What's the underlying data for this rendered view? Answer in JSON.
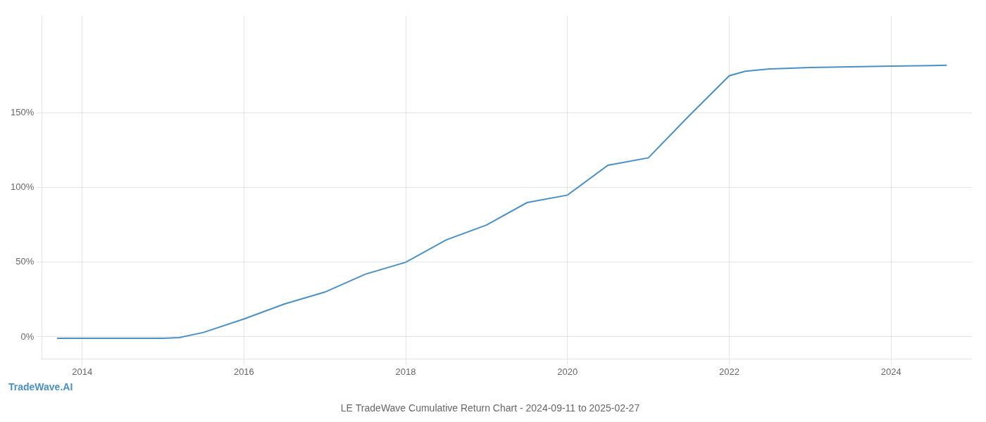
{
  "chart_data": {
    "type": "line",
    "title": "LE TradeWave Cumulative Return Chart - 2024-09-11 to 2025-02-27",
    "annotations": [
      "TradeWave.AI"
    ],
    "x": [
      2013.69,
      2014.0,
      2014.5,
      2015.0,
      2015.2,
      2015.5,
      2016.0,
      2016.5,
      2017.0,
      2017.5,
      2018.0,
      2018.5,
      2019.0,
      2019.5,
      2020.0,
      2020.5,
      2021.0,
      2021.5,
      2022.0,
      2022.2,
      2022.5,
      2023.0,
      2023.5,
      2024.0,
      2024.5,
      2024.69
    ],
    "values": [
      -1.0,
      -1.0,
      -1.0,
      -1.0,
      -0.5,
      3.0,
      12.0,
      22.0,
      30.0,
      42.0,
      50.0,
      65.0,
      75.0,
      90.0,
      95.0,
      115.0,
      120.0,
      148.0,
      175.0,
      178.0,
      179.5,
      180.5,
      181.0,
      181.5,
      181.8,
      182.0
    ],
    "color": "#4a90c4",
    "xlim": [
      2013.5,
      2025.0
    ],
    "xticks": [
      2014,
      2016,
      2018,
      2020,
      2022,
      2024
    ],
    "ylim": [
      -15,
      215
    ],
    "yticks": [
      {
        "value": 0,
        "label": "0%"
      },
      {
        "value": 50,
        "label": "50%"
      },
      {
        "value": 100,
        "label": "100%"
      },
      {
        "value": 150,
        "label": "150%"
      }
    ],
    "grid": true
  }
}
